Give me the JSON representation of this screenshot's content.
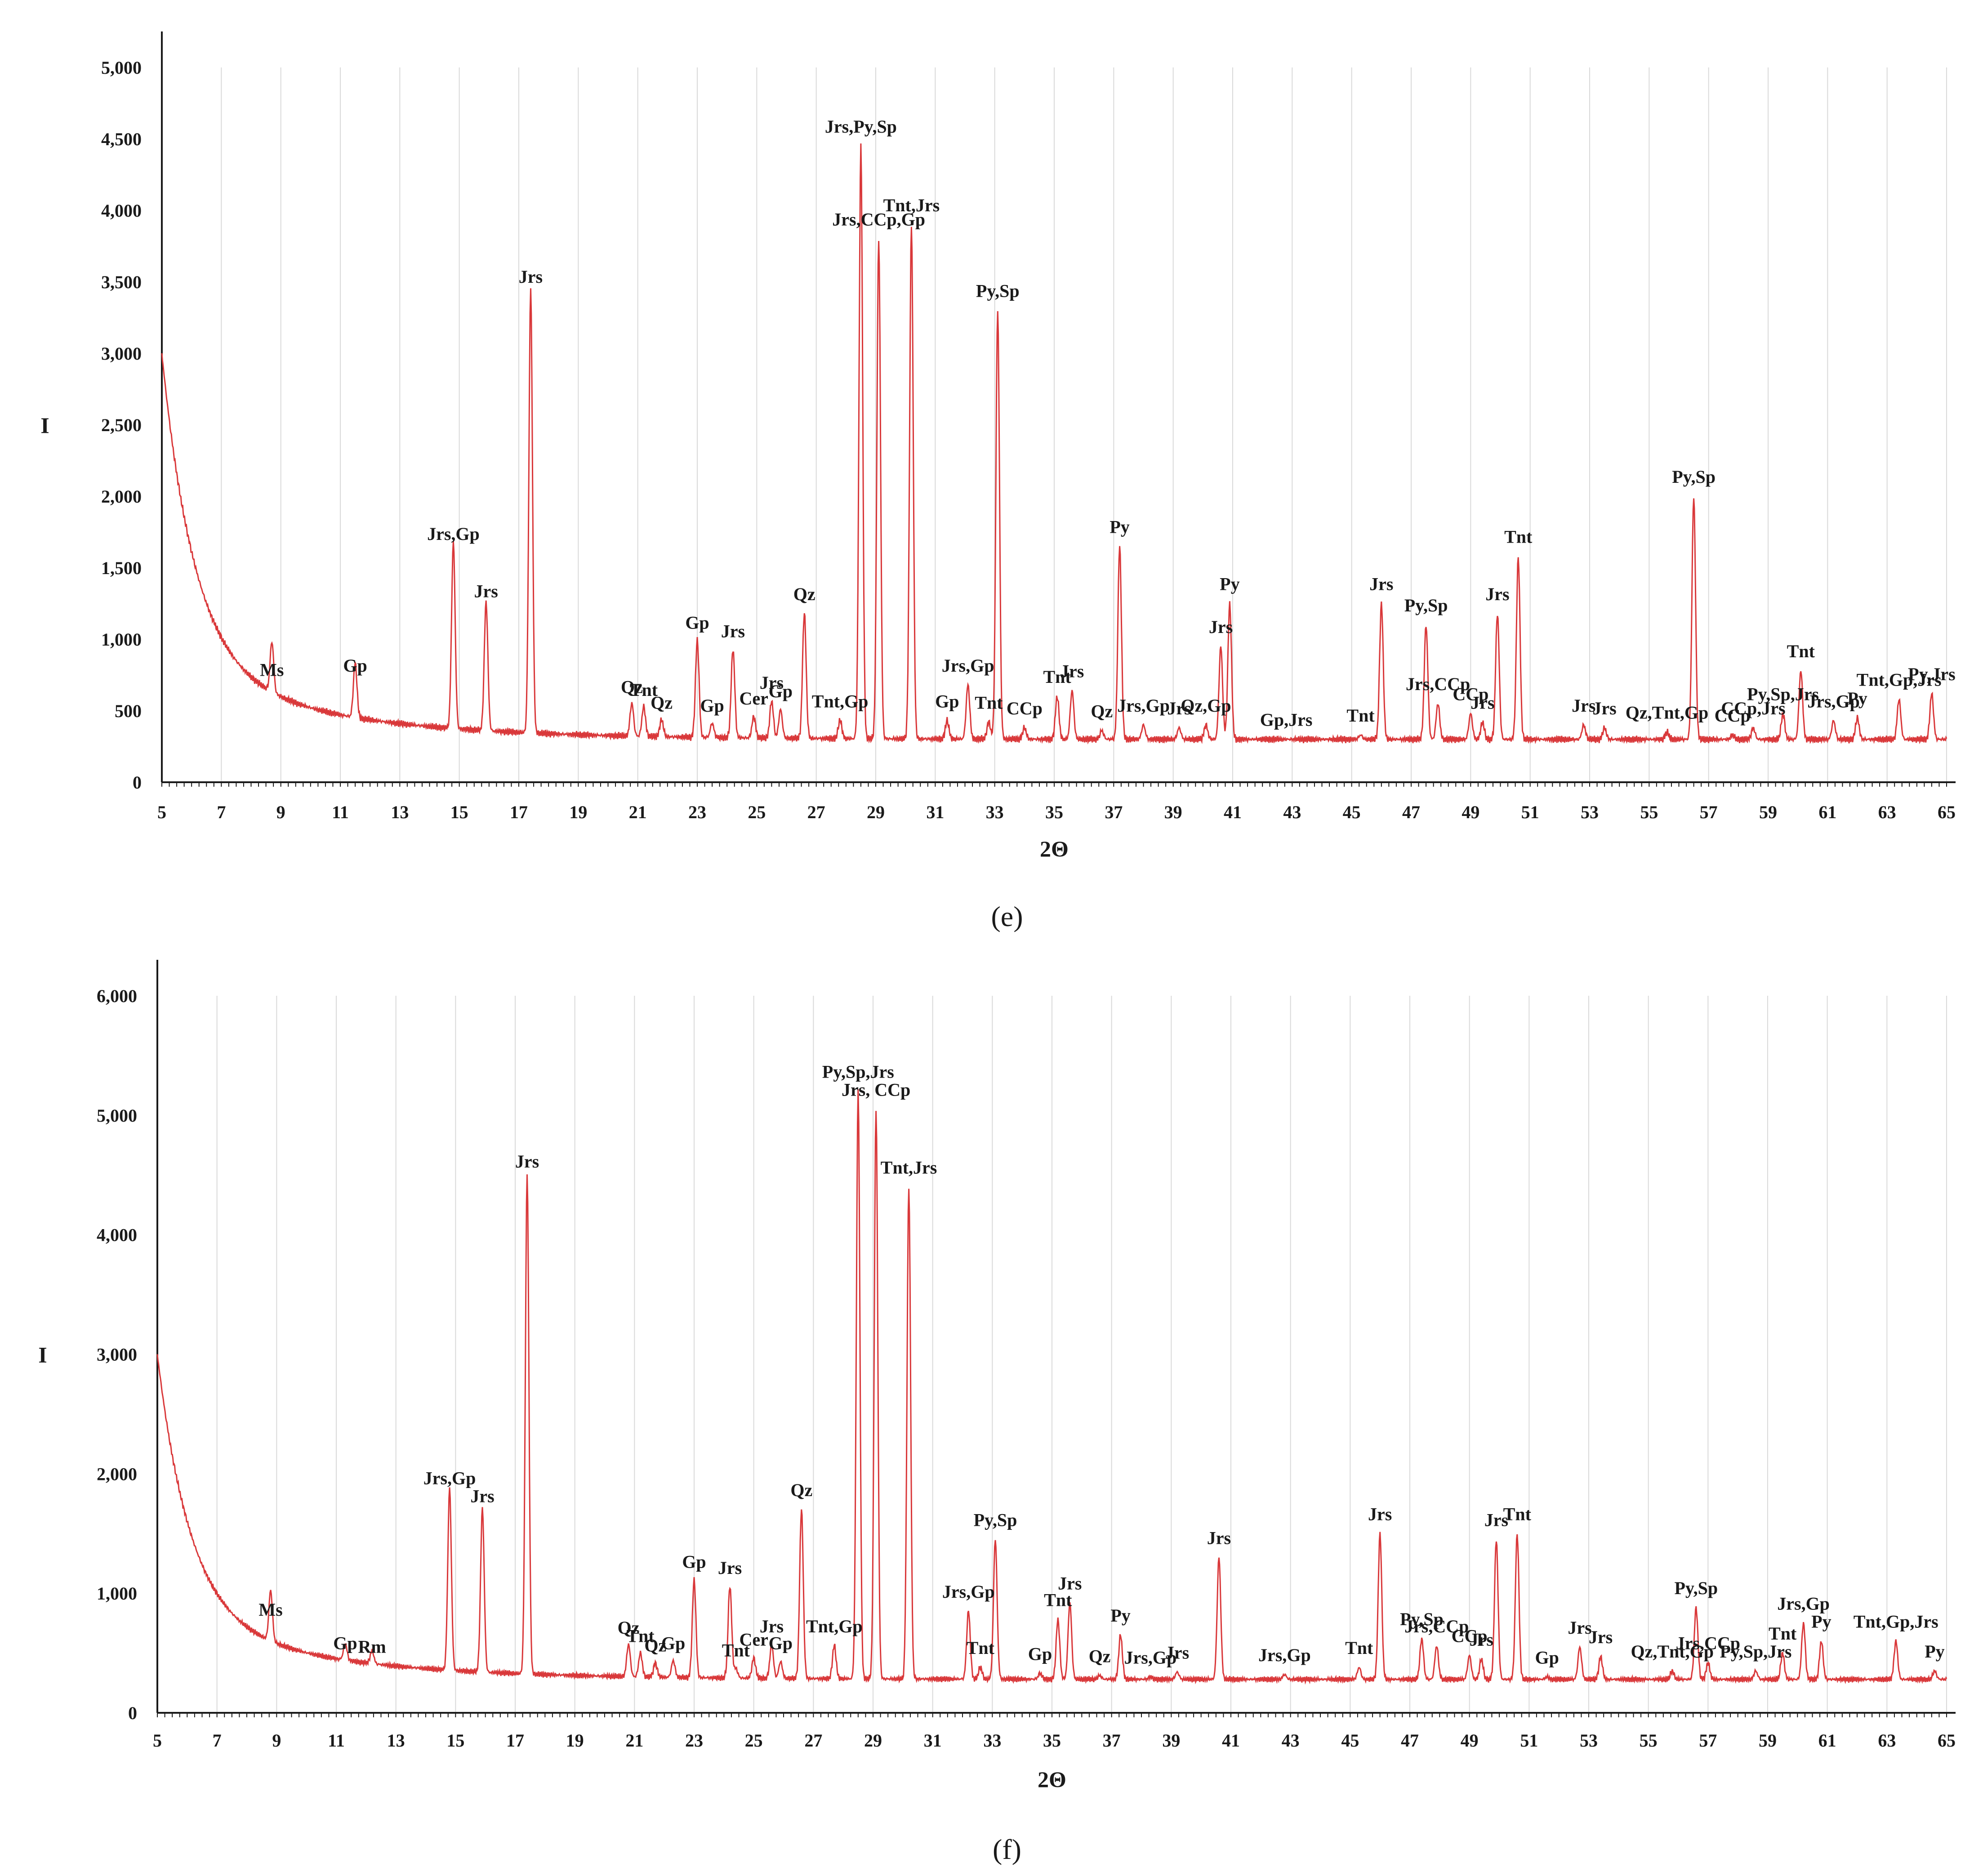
{
  "figure": {
    "panels": [
      {
        "caption": "(e)",
        "caption_letter": "e"
      },
      {
        "caption": "(f)",
        "caption_letter": "f"
      }
    ]
  },
  "colors": {
    "trace": "#d9383a",
    "axis": "#1a1a1a",
    "grid": "#d9d9d9"
  },
  "chart_data": [
    {
      "type": "line",
      "title": "",
      "caption": "(e)",
      "xlabel": "2Θ",
      "ylabel": "I",
      "xlim": [
        5,
        65
      ],
      "ylim": [
        0,
        5000
      ],
      "x_ticks": [
        5,
        7,
        9,
        11,
        13,
        15,
        17,
        19,
        21,
        23,
        25,
        27,
        29,
        31,
        33,
        35,
        37,
        39,
        41,
        43,
        45,
        47,
        49,
        51,
        53,
        55,
        57,
        59,
        61,
        63,
        65
      ],
      "y_ticks": [
        0,
        500,
        1000,
        1500,
        2000,
        2500,
        3000,
        3500,
        4000,
        4500,
        5000
      ],
      "y_tick_labels": [
        "0",
        "500",
        "1,000",
        "1,500",
        "2,000",
        "2,500",
        "3,000",
        "3,500",
        "4,000",
        "4,500",
        "5,000"
      ],
      "background": {
        "start": 3000,
        "tail": 300
      },
      "peaks": [
        {
          "x": 8.7,
          "y": 650,
          "label": "Ms"
        },
        {
          "x": 11.5,
          "y": 680,
          "label": "Gp"
        },
        {
          "x": 14.8,
          "y": 1600,
          "label": "Jrs,Gp"
        },
        {
          "x": 15.9,
          "y": 1200,
          "label": "Jrs"
        },
        {
          "x": 17.4,
          "y": 3400,
          "label": "Jrs"
        },
        {
          "x": 20.8,
          "y": 530,
          "label": "Qz"
        },
        {
          "x": 21.2,
          "y": 510,
          "label": "Tnt"
        },
        {
          "x": 21.8,
          "y": 420,
          "label": "Qz"
        },
        {
          "x": 23.0,
          "y": 980,
          "label": "Gp"
        },
        {
          "x": 23.5,
          "y": 400,
          "label": "Gp"
        },
        {
          "x": 24.2,
          "y": 920,
          "label": "Jrs"
        },
        {
          "x": 24.9,
          "y": 450,
          "label": "Cer"
        },
        {
          "x": 25.5,
          "y": 560,
          "label": "Jrs"
        },
        {
          "x": 25.8,
          "y": 500,
          "label": "Gp"
        },
        {
          "x": 26.6,
          "y": 1180,
          "label": "Qz"
        },
        {
          "x": 27.8,
          "y": 430,
          "label": "Tnt,Gp"
        },
        {
          "x": 28.5,
          "y": 4450,
          "label": "Jrs,Py,Sp"
        },
        {
          "x": 29.1,
          "y": 3800,
          "label": "Jrs,CCp,Gp"
        },
        {
          "x": 30.2,
          "y": 3900,
          "label": "Tnt,Jrs"
        },
        {
          "x": 31.4,
          "y": 430,
          "label": "Gp"
        },
        {
          "x": 32.1,
          "y": 680,
          "label": "Jrs,Gp"
        },
        {
          "x": 32.8,
          "y": 420,
          "label": "Tnt"
        },
        {
          "x": 33.1,
          "y": 3300,
          "label": "Py,Sp"
        },
        {
          "x": 34.0,
          "y": 380,
          "label": "CCp"
        },
        {
          "x": 35.1,
          "y": 600,
          "label": "Tnt"
        },
        {
          "x": 35.6,
          "y": 640,
          "label": "Jrs"
        },
        {
          "x": 36.6,
          "y": 360,
          "label": "Qz"
        },
        {
          "x": 37.2,
          "y": 1650,
          "label": "Py"
        },
        {
          "x": 38.0,
          "y": 400,
          "label": "Jrs,Gp"
        },
        {
          "x": 39.2,
          "y": 380,
          "label": "Jrs"
        },
        {
          "x": 40.1,
          "y": 400,
          "label": "Qz,Gp"
        },
        {
          "x": 40.6,
          "y": 950,
          "label": "Jrs"
        },
        {
          "x": 40.9,
          "y": 1250,
          "label": "Py"
        },
        {
          "x": 42.8,
          "y": 300,
          "label": "Gp,Jrs"
        },
        {
          "x": 45.3,
          "y": 330,
          "label": "Tnt"
        },
        {
          "x": 46.0,
          "y": 1250,
          "label": "Jrs"
        },
        {
          "x": 47.5,
          "y": 1100,
          "label": "Py,Sp"
        },
        {
          "x": 47.9,
          "y": 550,
          "label": "Jrs,CCp"
        },
        {
          "x": 49.0,
          "y": 480,
          "label": "CCp"
        },
        {
          "x": 49.4,
          "y": 420,
          "label": "Jrs"
        },
        {
          "x": 49.9,
          "y": 1180,
          "label": "Jrs"
        },
        {
          "x": 50.6,
          "y": 1580,
          "label": "Tnt"
        },
        {
          "x": 52.8,
          "y": 400,
          "label": "Jrs"
        },
        {
          "x": 53.5,
          "y": 380,
          "label": "Jrs"
        },
        {
          "x": 55.6,
          "y": 350,
          "label": "Qz,Tnt,Gp"
        },
        {
          "x": 56.5,
          "y": 2000,
          "label": "Py,Sp"
        },
        {
          "x": 57.8,
          "y": 330,
          "label": "CCp"
        },
        {
          "x": 58.5,
          "y": 380,
          "label": "CCp,Jrs"
        },
        {
          "x": 59.5,
          "y": 480,
          "label": "Py,Sp,Jrs"
        },
        {
          "x": 60.1,
          "y": 780,
          "label": "Tnt"
        },
        {
          "x": 61.2,
          "y": 430,
          "label": "Jrs,Gp"
        },
        {
          "x": 62.0,
          "y": 450,
          "label": "Py"
        },
        {
          "x": 63.4,
          "y": 580,
          "label": "Tnt,Gp,Jrs"
        },
        {
          "x": 64.5,
          "y": 620,
          "label": "Py,Jrs"
        }
      ]
    },
    {
      "type": "line",
      "title": "",
      "caption": "(f)",
      "xlabel": "2Θ",
      "ylabel": "I",
      "xlim": [
        5,
        65
      ],
      "ylim": [
        0,
        6000
      ],
      "x_ticks": [
        5,
        7,
        9,
        11,
        13,
        15,
        17,
        19,
        21,
        23,
        25,
        27,
        29,
        31,
        33,
        35,
        37,
        39,
        41,
        43,
        45,
        47,
        49,
        51,
        53,
        55,
        57,
        59,
        61,
        63,
        65
      ],
      "y_ticks": [
        0,
        1000,
        2000,
        3000,
        4000,
        5000,
        6000
      ],
      "y_tick_labels": [
        "0",
        "1,000",
        "2,000",
        "3,000",
        "4,000",
        "5,000",
        "6,000"
      ],
      "background": {
        "start": 3000,
        "tail": 280
      },
      "peaks": [
        {
          "x": 8.8,
          "y": 700,
          "label": "Ms"
        },
        {
          "x": 11.3,
          "y": 420,
          "label": "Gp"
        },
        {
          "x": 12.2,
          "y": 390,
          "label": "Rm"
        },
        {
          "x": 14.8,
          "y": 1800,
          "label": "Jrs,Gp"
        },
        {
          "x": 15.9,
          "y": 1650,
          "label": "Jrs"
        },
        {
          "x": 17.4,
          "y": 4450,
          "label": "Jrs"
        },
        {
          "x": 20.8,
          "y": 550,
          "label": "Qz"
        },
        {
          "x": 21.2,
          "y": 480,
          "label": "Tnt"
        },
        {
          "x": 21.7,
          "y": 400,
          "label": "Qz"
        },
        {
          "x": 22.3,
          "y": 420,
          "label": "Gp"
        },
        {
          "x": 23.0,
          "y": 1100,
          "label": "Gp"
        },
        {
          "x": 24.4,
          "y": 360,
          "label": "Tnt"
        },
        {
          "x": 24.2,
          "y": 1050,
          "label": "Jrs"
        },
        {
          "x": 25.0,
          "y": 450,
          "label": "Cer"
        },
        {
          "x": 25.6,
          "y": 560,
          "label": "Jrs"
        },
        {
          "x": 25.9,
          "y": 420,
          "label": "Gp"
        },
        {
          "x": 26.6,
          "y": 1700,
          "label": "Qz"
        },
        {
          "x": 27.7,
          "y": 560,
          "label": "Tnt,Gp"
        },
        {
          "x": 28.5,
          "y": 5200,
          "label": "Py,Sp,Jrs"
        },
        {
          "x": 29.1,
          "y": 5050,
          "label": "Jrs, CCp"
        },
        {
          "x": 30.2,
          "y": 4400,
          "label": "Tnt,Jrs"
        },
        {
          "x": 32.2,
          "y": 850,
          "label": "Jrs,Gp"
        },
        {
          "x": 32.6,
          "y": 380,
          "label": "Tnt"
        },
        {
          "x": 33.1,
          "y": 1450,
          "label": "Py,Sp"
        },
        {
          "x": 34.6,
          "y": 330,
          "label": "Gp"
        },
        {
          "x": 35.2,
          "y": 780,
          "label": "Tnt"
        },
        {
          "x": 35.6,
          "y": 920,
          "label": "Jrs"
        },
        {
          "x": 36.6,
          "y": 310,
          "label": "Qz"
        },
        {
          "x": 37.3,
          "y": 650,
          "label": "Py"
        },
        {
          "x": 38.3,
          "y": 300,
          "label": "Jrs,Gp"
        },
        {
          "x": 39.2,
          "y": 340,
          "label": "Jrs"
        },
        {
          "x": 40.6,
          "y": 1300,
          "label": "Jrs"
        },
        {
          "x": 42.8,
          "y": 320,
          "label": "Jrs,Gp"
        },
        {
          "x": 45.3,
          "y": 380,
          "label": "Tnt"
        },
        {
          "x": 46.0,
          "y": 1500,
          "label": "Jrs"
        },
        {
          "x": 47.4,
          "y": 620,
          "label": "Py,Sp"
        },
        {
          "x": 47.9,
          "y": 560,
          "label": "Jrs,CCp"
        },
        {
          "x": 49.0,
          "y": 480,
          "label": "CCp"
        },
        {
          "x": 49.4,
          "y": 450,
          "label": "Jrs"
        },
        {
          "x": 49.9,
          "y": 1450,
          "label": "Jrs"
        },
        {
          "x": 50.6,
          "y": 1500,
          "label": "Tnt"
        },
        {
          "x": 51.6,
          "y": 300,
          "label": "Gp"
        },
        {
          "x": 52.7,
          "y": 550,
          "label": "Jrs"
        },
        {
          "x": 53.4,
          "y": 470,
          "label": "Jrs"
        },
        {
          "x": 55.8,
          "y": 350,
          "label": "Qz,Tnt,Gp"
        },
        {
          "x": 56.6,
          "y": 880,
          "label": "Py,Sp"
        },
        {
          "x": 57.0,
          "y": 420,
          "label": "Jrs,CCp"
        },
        {
          "x": 58.6,
          "y": 350,
          "label": "Py,Sp,Jrs"
        },
        {
          "x": 59.5,
          "y": 500,
          "label": "Tnt"
        },
        {
          "x": 60.2,
          "y": 750,
          "label": "Jrs,Gp"
        },
        {
          "x": 60.8,
          "y": 600,
          "label": "Py"
        },
        {
          "x": 63.3,
          "y": 600,
          "label": "Tnt,Gp,Jrs"
        },
        {
          "x": 64.6,
          "y": 350,
          "label": "Py"
        }
      ]
    }
  ]
}
